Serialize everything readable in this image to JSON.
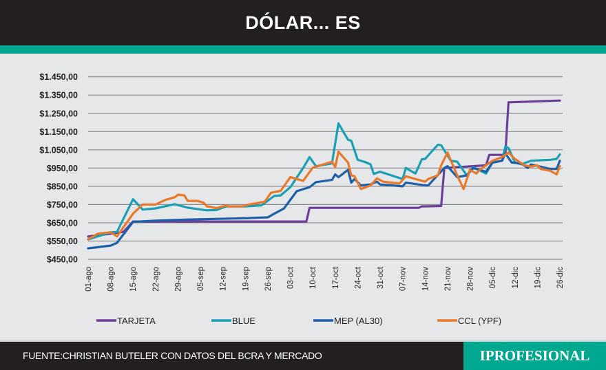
{
  "header": {
    "title": "DÓLAR... ES"
  },
  "footer": {
    "source": "FUENTE:CHRISTIAN BUTELER CON DATOS DEL BCRA Y MERCADO",
    "logo": "IPROFESIONAL"
  },
  "colors": {
    "header_bg": "#231f20",
    "accent": "#00a88f",
    "plot_bg": "#e6e7e9"
  },
  "chart_data": {
    "type": "line",
    "title": "DÓLAR... ES",
    "xlabel": "",
    "ylabel": "",
    "ylim": [
      450,
      1450
    ],
    "y_ticks": [
      "$450,00",
      "$550,00",
      "$650,00",
      "$750,00",
      "$850,00",
      "$950,00",
      "$1.050,00",
      "$1.150,00",
      "$1.250,00",
      "$1.350,00",
      "$1.450,00"
    ],
    "y_tick_values": [
      450,
      550,
      650,
      750,
      850,
      950,
      1050,
      1150,
      1250,
      1350,
      1450
    ],
    "x_ticks": [
      "01-ago",
      "08-ago",
      "15-ago",
      "22-ago",
      "29-ago",
      "05-sep",
      "12-sep",
      "19-sep",
      "26-sep",
      "03-oct",
      "10-oct",
      "17-oct",
      "24-oct",
      "31-oct",
      "07-nov",
      "14-nov",
      "21-nov",
      "28-nov",
      "05-dic",
      "12-dic",
      "19-dic",
      "26-dic"
    ],
    "grid": true,
    "legend": "bottom",
    "series": [
      {
        "name": "TARJETA",
        "color": "#6b3f98",
        "points": [
          [
            "01-ago",
            575
          ],
          [
            "08-ago",
            590
          ],
          [
            "12-ago",
            600
          ],
          [
            "15-ago",
            657
          ],
          [
            "08-oct",
            657
          ],
          [
            "09-oct",
            732
          ],
          [
            "12-nov",
            732
          ],
          [
            "13-nov",
            740
          ],
          [
            "19-nov",
            742
          ],
          [
            "20-nov",
            950
          ],
          [
            "03-dic",
            965
          ],
          [
            "04-dic",
            1022
          ],
          [
            "09-dic",
            1022
          ],
          [
            "10-dic",
            1310
          ],
          [
            "26-dic",
            1320
          ]
        ]
      },
      {
        "name": "BLUE",
        "color": "#1a9fb5",
        "points": [
          [
            "01-ago",
            559
          ],
          [
            "08-ago",
            597
          ],
          [
            "10-ago",
            600
          ],
          [
            "15-ago",
            779
          ],
          [
            "18-ago",
            722
          ],
          [
            "22-ago",
            729
          ],
          [
            "28-ago",
            752
          ],
          [
            "01-sep",
            733
          ],
          [
            "07-sep",
            718
          ],
          [
            "10-sep",
            720
          ],
          [
            "13-sep",
            740
          ],
          [
            "19-sep",
            740
          ],
          [
            "24-sep",
            745
          ],
          [
            "28-sep",
            797
          ],
          [
            "30-sep",
            800
          ],
          [
            "03-oct",
            845
          ],
          [
            "07-oct",
            950
          ],
          [
            "09-oct",
            1010
          ],
          [
            "11-oct",
            960
          ],
          [
            "16-oct",
            975
          ],
          [
            "18-oct",
            1195
          ],
          [
            "21-oct",
            1105
          ],
          [
            "22-oct",
            1100
          ],
          [
            "24-oct",
            995
          ],
          [
            "26-oct",
            985
          ],
          [
            "28-oct",
            970
          ],
          [
            "29-oct",
            918
          ],
          [
            "31-oct",
            930
          ],
          [
            "07-nov",
            890
          ],
          [
            "08-nov",
            950
          ],
          [
            "11-nov",
            920
          ],
          [
            "13-nov",
            998
          ],
          [
            "14-nov",
            1000
          ],
          [
            "18-nov",
            1078
          ],
          [
            "19-nov",
            1075
          ],
          [
            "22-nov",
            990
          ],
          [
            "24-nov",
            985
          ],
          [
            "27-nov",
            910
          ],
          [
            "29-nov",
            955
          ],
          [
            "03-dic",
            920
          ],
          [
            "05-dic",
            980
          ],
          [
            "08-dic",
            990
          ],
          [
            "09-dic",
            1068
          ],
          [
            "10-dic",
            1060
          ],
          [
            "12-dic",
            980
          ],
          [
            "14-dic",
            970
          ],
          [
            "17-dic",
            990
          ],
          [
            "23-dic",
            995
          ],
          [
            "25-dic",
            1000
          ],
          [
            "26-dic",
            1025
          ]
        ]
      },
      {
        "name": "MEP (AL30)",
        "color": "#1f5fa8",
        "points": [
          [
            "01-ago",
            510
          ],
          [
            "08-ago",
            525
          ],
          [
            "10-ago",
            540
          ],
          [
            "15-ago",
            655
          ],
          [
            "22-ago",
            662
          ],
          [
            "01-sep",
            668
          ],
          [
            "19-sep",
            675
          ],
          [
            "26-sep",
            680
          ],
          [
            "28-sep",
            700
          ],
          [
            "01-oct",
            728
          ],
          [
            "05-oct",
            823
          ],
          [
            "09-oct",
            845
          ],
          [
            "11-oct",
            873
          ],
          [
            "16-oct",
            885
          ],
          [
            "17-oct",
            915
          ],
          [
            "18-oct",
            900
          ],
          [
            "21-oct",
            940
          ],
          [
            "22-oct",
            870
          ],
          [
            "23-oct",
            890
          ],
          [
            "25-oct",
            855
          ],
          [
            "28-oct",
            860
          ],
          [
            "30-oct",
            875
          ],
          [
            "31-oct",
            860
          ],
          [
            "07-nov",
            850
          ],
          [
            "08-nov",
            870
          ],
          [
            "14-nov",
            855
          ],
          [
            "15-nov",
            855
          ],
          [
            "20-nov",
            950
          ],
          [
            "21-nov",
            960
          ],
          [
            "24-nov",
            900
          ],
          [
            "27-nov",
            910
          ],
          [
            "29-nov",
            950
          ],
          [
            "03-dic",
            930
          ],
          [
            "05-dic",
            980
          ],
          [
            "08-dic",
            990
          ],
          [
            "09-dic",
            1030
          ],
          [
            "11-dic",
            980
          ],
          [
            "14-dic",
            975
          ],
          [
            "16-dic",
            950
          ],
          [
            "17-dic",
            970
          ],
          [
            "23-dic",
            945
          ],
          [
            "25-dic",
            945
          ],
          [
            "26-dic",
            990
          ]
        ]
      },
      {
        "name": "CCL (YPF)",
        "color": "#e8792a",
        "points": [
          [
            "01-ago",
            560
          ],
          [
            "04-ago",
            590
          ],
          [
            "08-ago",
            598
          ],
          [
            "10-ago",
            575
          ],
          [
            "15-ago",
            700
          ],
          [
            "18-ago",
            750
          ],
          [
            "22-ago",
            750
          ],
          [
            "25-ago",
            775
          ],
          [
            "28-ago",
            790
          ],
          [
            "29-ago",
            804
          ],
          [
            "31-ago",
            800
          ],
          [
            "01-sep",
            770
          ],
          [
            "04-sep",
            770
          ],
          [
            "06-sep",
            760
          ],
          [
            "07-sep",
            740
          ],
          [
            "10-sep",
            730
          ],
          [
            "13-sep",
            745
          ],
          [
            "14-sep",
            740
          ],
          [
            "18-sep",
            740
          ],
          [
            "20-sep",
            750
          ],
          [
            "25-sep",
            765
          ],
          [
            "27-sep",
            815
          ],
          [
            "30-sep",
            825
          ],
          [
            "03-oct",
            900
          ],
          [
            "07-oct",
            880
          ],
          [
            "10-oct",
            952
          ],
          [
            "16-oct",
            985
          ],
          [
            "17-oct",
            955
          ],
          [
            "18-oct",
            1040
          ],
          [
            "21-oct",
            980
          ],
          [
            "22-oct",
            910
          ],
          [
            "23-oct",
            905
          ],
          [
            "25-oct",
            835
          ],
          [
            "28-oct",
            855
          ],
          [
            "30-oct",
            893
          ],
          [
            "01-nov",
            875
          ],
          [
            "06-nov",
            865
          ],
          [
            "08-nov",
            905
          ],
          [
            "13-nov",
            880
          ],
          [
            "14-nov",
            875
          ],
          [
            "15-nov",
            890
          ],
          [
            "18-nov",
            910
          ],
          [
            "19-nov",
            965
          ],
          [
            "21-nov",
            1035
          ],
          [
            "24-nov",
            910
          ],
          [
            "26-nov",
            835
          ],
          [
            "28-nov",
            940
          ],
          [
            "30-nov",
            920
          ],
          [
            "01-dic",
            940
          ],
          [
            "05-dic",
            990
          ],
          [
            "08-dic",
            1010
          ],
          [
            "10-dic",
            1035
          ],
          [
            "12-dic",
            1000
          ],
          [
            "15-dic",
            965
          ],
          [
            "17-dic",
            958
          ],
          [
            "19-dic",
            965
          ],
          [
            "20-dic",
            945
          ],
          [
            "23-dic",
            935
          ],
          [
            "25-dic",
            915
          ],
          [
            "26-dic",
            960
          ]
        ]
      }
    ]
  }
}
